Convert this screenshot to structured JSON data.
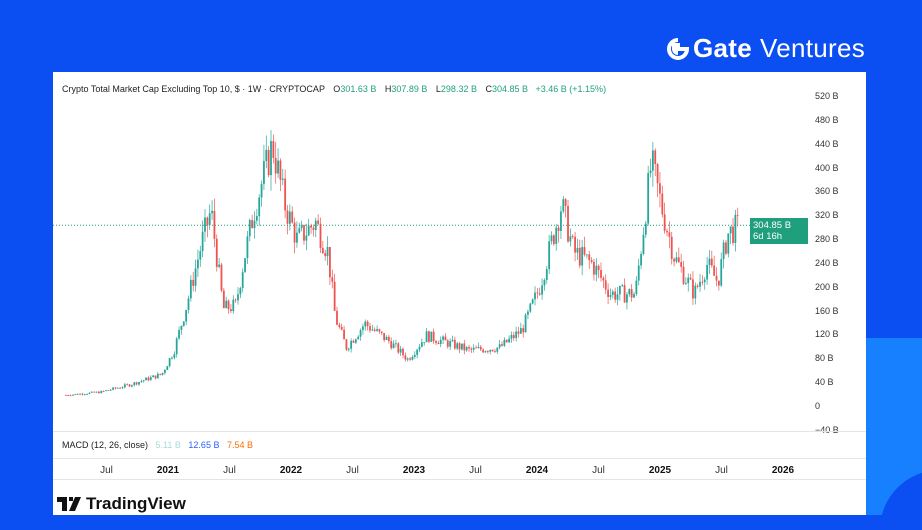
{
  "brand": {
    "name_bold": "Gate",
    "name_light": "Ventures"
  },
  "footer": {
    "logo_text": "TradingView"
  },
  "legend": {
    "title": "Crypto Total Market Cap Excluding Top 10, $ · 1W · CRYPTOCAP",
    "open_label": "O",
    "open": "301.63 B",
    "high_label": "H",
    "high": "307.89 B",
    "low_label": "L",
    "low": "298.32 B",
    "close_label": "C",
    "close": "304.85 B",
    "change": "+3.46 B (+1.15%)"
  },
  "last_price": {
    "value": "304.85 B",
    "countdown": "6d 16h"
  },
  "macd": {
    "label": "MACD (12, 26, close)",
    "hist": "5.11 B",
    "macd": "12.65 B",
    "signal": "7.54 B"
  },
  "colors": {
    "up": "#26a69a",
    "down": "#ef5350",
    "hist": "#a8ddd6",
    "macd": "#2962ff",
    "signal": "#ff6d00",
    "background": "#0b4ef2"
  },
  "chart_data": {
    "type": "candlestick",
    "title": "Crypto Total Market Cap Excluding Top 10, $ · 1W · CRYPTOCAP",
    "interval": "1W",
    "ylabel": "USD",
    "ylim": [
      -40,
      540
    ],
    "yticks": [
      "520 B",
      "480 B",
      "440 B",
      "400 B",
      "360 B",
      "320 B",
      "280 B",
      "240 B",
      "200 B",
      "160 B",
      "120 B",
      "80 B",
      "40 B",
      "0",
      "−40 B"
    ],
    "ytick_values": [
      520,
      480,
      440,
      400,
      360,
      320,
      280,
      240,
      200,
      160,
      120,
      80,
      40,
      0,
      -40
    ],
    "xticks": [
      {
        "label": "Jul",
        "t": 2020.5,
        "bold": false
      },
      {
        "label": "2021",
        "t": 2021.0,
        "bold": true
      },
      {
        "label": "Jul",
        "t": 2021.5,
        "bold": false
      },
      {
        "label": "2022",
        "t": 2022.0,
        "bold": true
      },
      {
        "label": "Jul",
        "t": 2022.5,
        "bold": false
      },
      {
        "label": "2023",
        "t": 2023.0,
        "bold": true
      },
      {
        "label": "Jul",
        "t": 2023.5,
        "bold": false
      },
      {
        "label": "2024",
        "t": 2024.0,
        "bold": true
      },
      {
        "label": "Jul",
        "t": 2024.5,
        "bold": false
      },
      {
        "label": "2025",
        "t": 2025.0,
        "bold": true
      },
      {
        "label": "Jul",
        "t": 2025.5,
        "bold": false
      },
      {
        "label": "2026",
        "t": 2026.0,
        "bold": true
      }
    ],
    "approx_close_anchors": [
      [
        2020.17,
        20
      ],
      [
        2020.45,
        25
      ],
      [
        2020.7,
        38
      ],
      [
        2020.95,
        55
      ],
      [
        2021.05,
        95
      ],
      [
        2021.15,
        170
      ],
      [
        2021.28,
        280
      ],
      [
        2021.35,
        330
      ],
      [
        2021.45,
        165
      ],
      [
        2021.55,
        170
      ],
      [
        2021.62,
        250
      ],
      [
        2021.7,
        330
      ],
      [
        2021.85,
        440
      ],
      [
        2021.95,
        340
      ],
      [
        2022.05,
        280
      ],
      [
        2022.2,
        310
      ],
      [
        2022.3,
        260
      ],
      [
        2022.36,
        150
      ],
      [
        2022.45,
        100
      ],
      [
        2022.6,
        140
      ],
      [
        2022.8,
        110
      ],
      [
        2022.95,
        80
      ],
      [
        2023.1,
        120
      ],
      [
        2023.45,
        95
      ],
      [
        2023.7,
        100
      ],
      [
        2023.88,
        130
      ],
      [
        2024.02,
        200
      ],
      [
        2024.2,
        340
      ],
      [
        2024.3,
        260
      ],
      [
        2024.45,
        240
      ],
      [
        2024.6,
        190
      ],
      [
        2024.8,
        190
      ],
      [
        2024.93,
        410
      ],
      [
        2025.02,
        330
      ],
      [
        2025.12,
        250
      ],
      [
        2025.28,
        190
      ],
      [
        2025.38,
        240
      ],
      [
        2025.47,
        210
      ],
      [
        2025.55,
        290
      ],
      [
        2025.65,
        305
      ]
    ],
    "last_close": 304.85
  }
}
